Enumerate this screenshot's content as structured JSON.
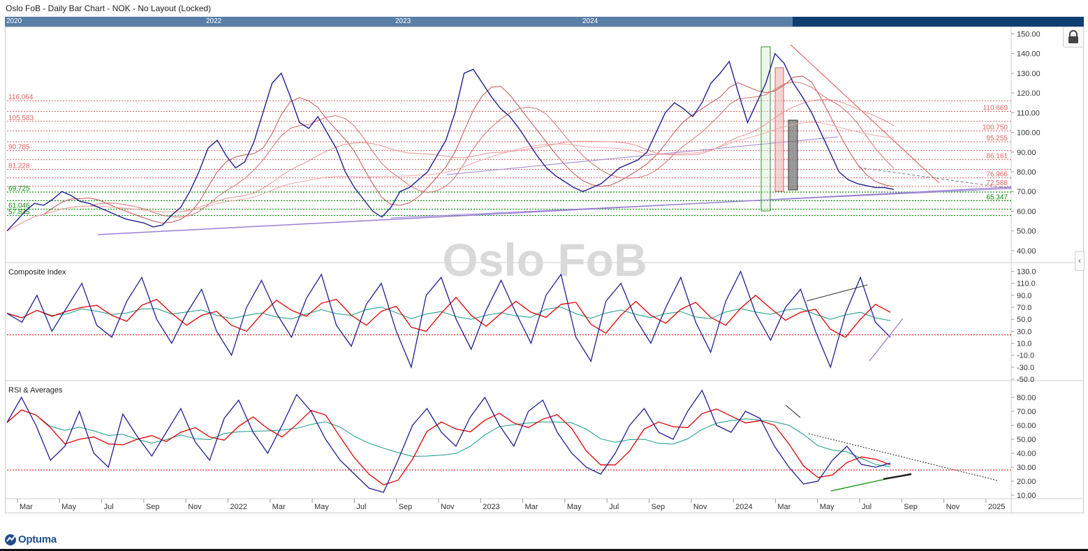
{
  "header": {
    "title": "Oslo FoB - Daily Bar Chart - NOK - No Layout (Locked)"
  },
  "timeline": {
    "years": [
      "2020",
      "2022",
      "2023",
      "2024"
    ]
  },
  "watermark": "Oslo FoB",
  "footer": {
    "logo": "Optuma"
  },
  "colors": {
    "price": "#1f1f8f",
    "ma_red": "#e05050",
    "signal_red": "#e00000",
    "signal_green": "#159a86",
    "support_green": "#0a8a0a",
    "resistance_red": "#e06060",
    "trend_purple": "#9a7fd6"
  },
  "chart_data": [
    {
      "type": "line",
      "panel": "price",
      "xlabels": [
        "Mar",
        "May",
        "Jul",
        "Sep",
        "Nov",
        "2022",
        "Mar",
        "May",
        "Jul",
        "Sep",
        "Nov",
        "2023",
        "Mar",
        "May",
        "Jul",
        "Sep",
        "Nov",
        "2024",
        "Mar",
        "May",
        "Jul",
        "Sep",
        "Nov",
        "2025"
      ],
      "ylim": [
        35,
        153
      ],
      "yticks": [
        "150.00",
        "140.00",
        "130.00",
        "120.00",
        "110.00",
        "100.00",
        "90.00",
        "80.00",
        "70.00",
        "60.00",
        "50.00",
        "40.00"
      ],
      "series": [
        {
          "values": [
            50,
            55,
            60,
            64,
            63,
            66,
            70,
            68,
            65,
            64,
            62,
            60,
            58,
            56,
            55,
            54,
            52,
            53,
            58,
            62,
            70,
            80,
            92,
            96,
            88,
            82,
            85,
            95,
            110,
            125,
            130,
            118,
            105,
            102,
            108,
            100,
            92,
            80,
            72,
            66,
            60,
            57,
            62,
            70,
            72,
            76,
            80,
            88,
            96,
            110,
            130,
            132,
            125,
            118,
            112,
            108,
            102,
            95,
            88,
            82,
            78,
            75,
            72,
            70,
            72,
            74,
            78,
            82,
            84,
            86,
            90,
            100,
            110,
            115,
            112,
            108,
            115,
            125,
            130,
            136,
            120,
            105,
            115,
            125,
            140,
            135,
            125,
            118,
            110,
            100,
            90,
            80,
            76,
            74,
            73,
            72,
            72,
            71
          ]
        }
      ],
      "support_levels": [
        "69.725",
        "65.347",
        "61.046",
        "57.835"
      ],
      "resistance_levels": [
        "116.064",
        "110.669",
        "105.583",
        "100.750",
        "95.255",
        "90.785",
        "86.161",
        "81.228",
        "76.966",
        "72.588"
      ]
    },
    {
      "type": "line",
      "panel": "composite",
      "title": "Composite Index",
      "ylim": [
        -50,
        140
      ],
      "yticks": [
        "130.0",
        "110.0",
        "90.0",
        "70.0",
        "50.0",
        "30.0",
        "10.0",
        "-10.0",
        "-30.0",
        "-50.0"
      ],
      "reference": 24,
      "series": [
        {
          "values": [
            60,
            45,
            90,
            30,
            70,
            110,
            40,
            20,
            80,
            120,
            50,
            10,
            60,
            100,
            30,
            -10,
            70,
            115,
            60,
            20,
            85,
            125,
            40,
            5,
            75,
            110,
            30,
            -30,
            90,
            120,
            50,
            0,
            65,
            115,
            60,
            10,
            90,
            125,
            20,
            -20,
            80,
            110,
            50,
            10,
            70,
            120,
            45,
            -5,
            80,
            130,
            60,
            15,
            70,
            100,
            30,
            -30,
            60,
            120,
            45,
            20
          ]
        }
      ]
    },
    {
      "type": "line",
      "panel": "rsi",
      "title": "RSI & Averages",
      "ylim": [
        8,
        90
      ],
      "yticks": [
        "80.00",
        "70.00",
        "60.00",
        "50.00",
        "40.00",
        "30.00",
        "20.00",
        "10.00"
      ],
      "reference": 28,
      "series": [
        {
          "values": [
            62,
            80,
            60,
            35,
            45,
            70,
            40,
            30,
            68,
            52,
            38,
            55,
            72,
            48,
            35,
            65,
            78,
            55,
            40,
            60,
            82,
            70,
            50,
            35,
            25,
            15,
            12,
            35,
            60,
            72,
            55,
            45,
            66,
            80,
            60,
            45,
            70,
            78,
            55,
            40,
            30,
            25,
            40,
            60,
            72,
            55,
            50,
            70,
            85,
            60,
            55,
            70,
            65,
            45,
            30,
            18,
            20,
            35,
            45,
            32,
            30,
            33
          ]
        }
      ]
    }
  ]
}
